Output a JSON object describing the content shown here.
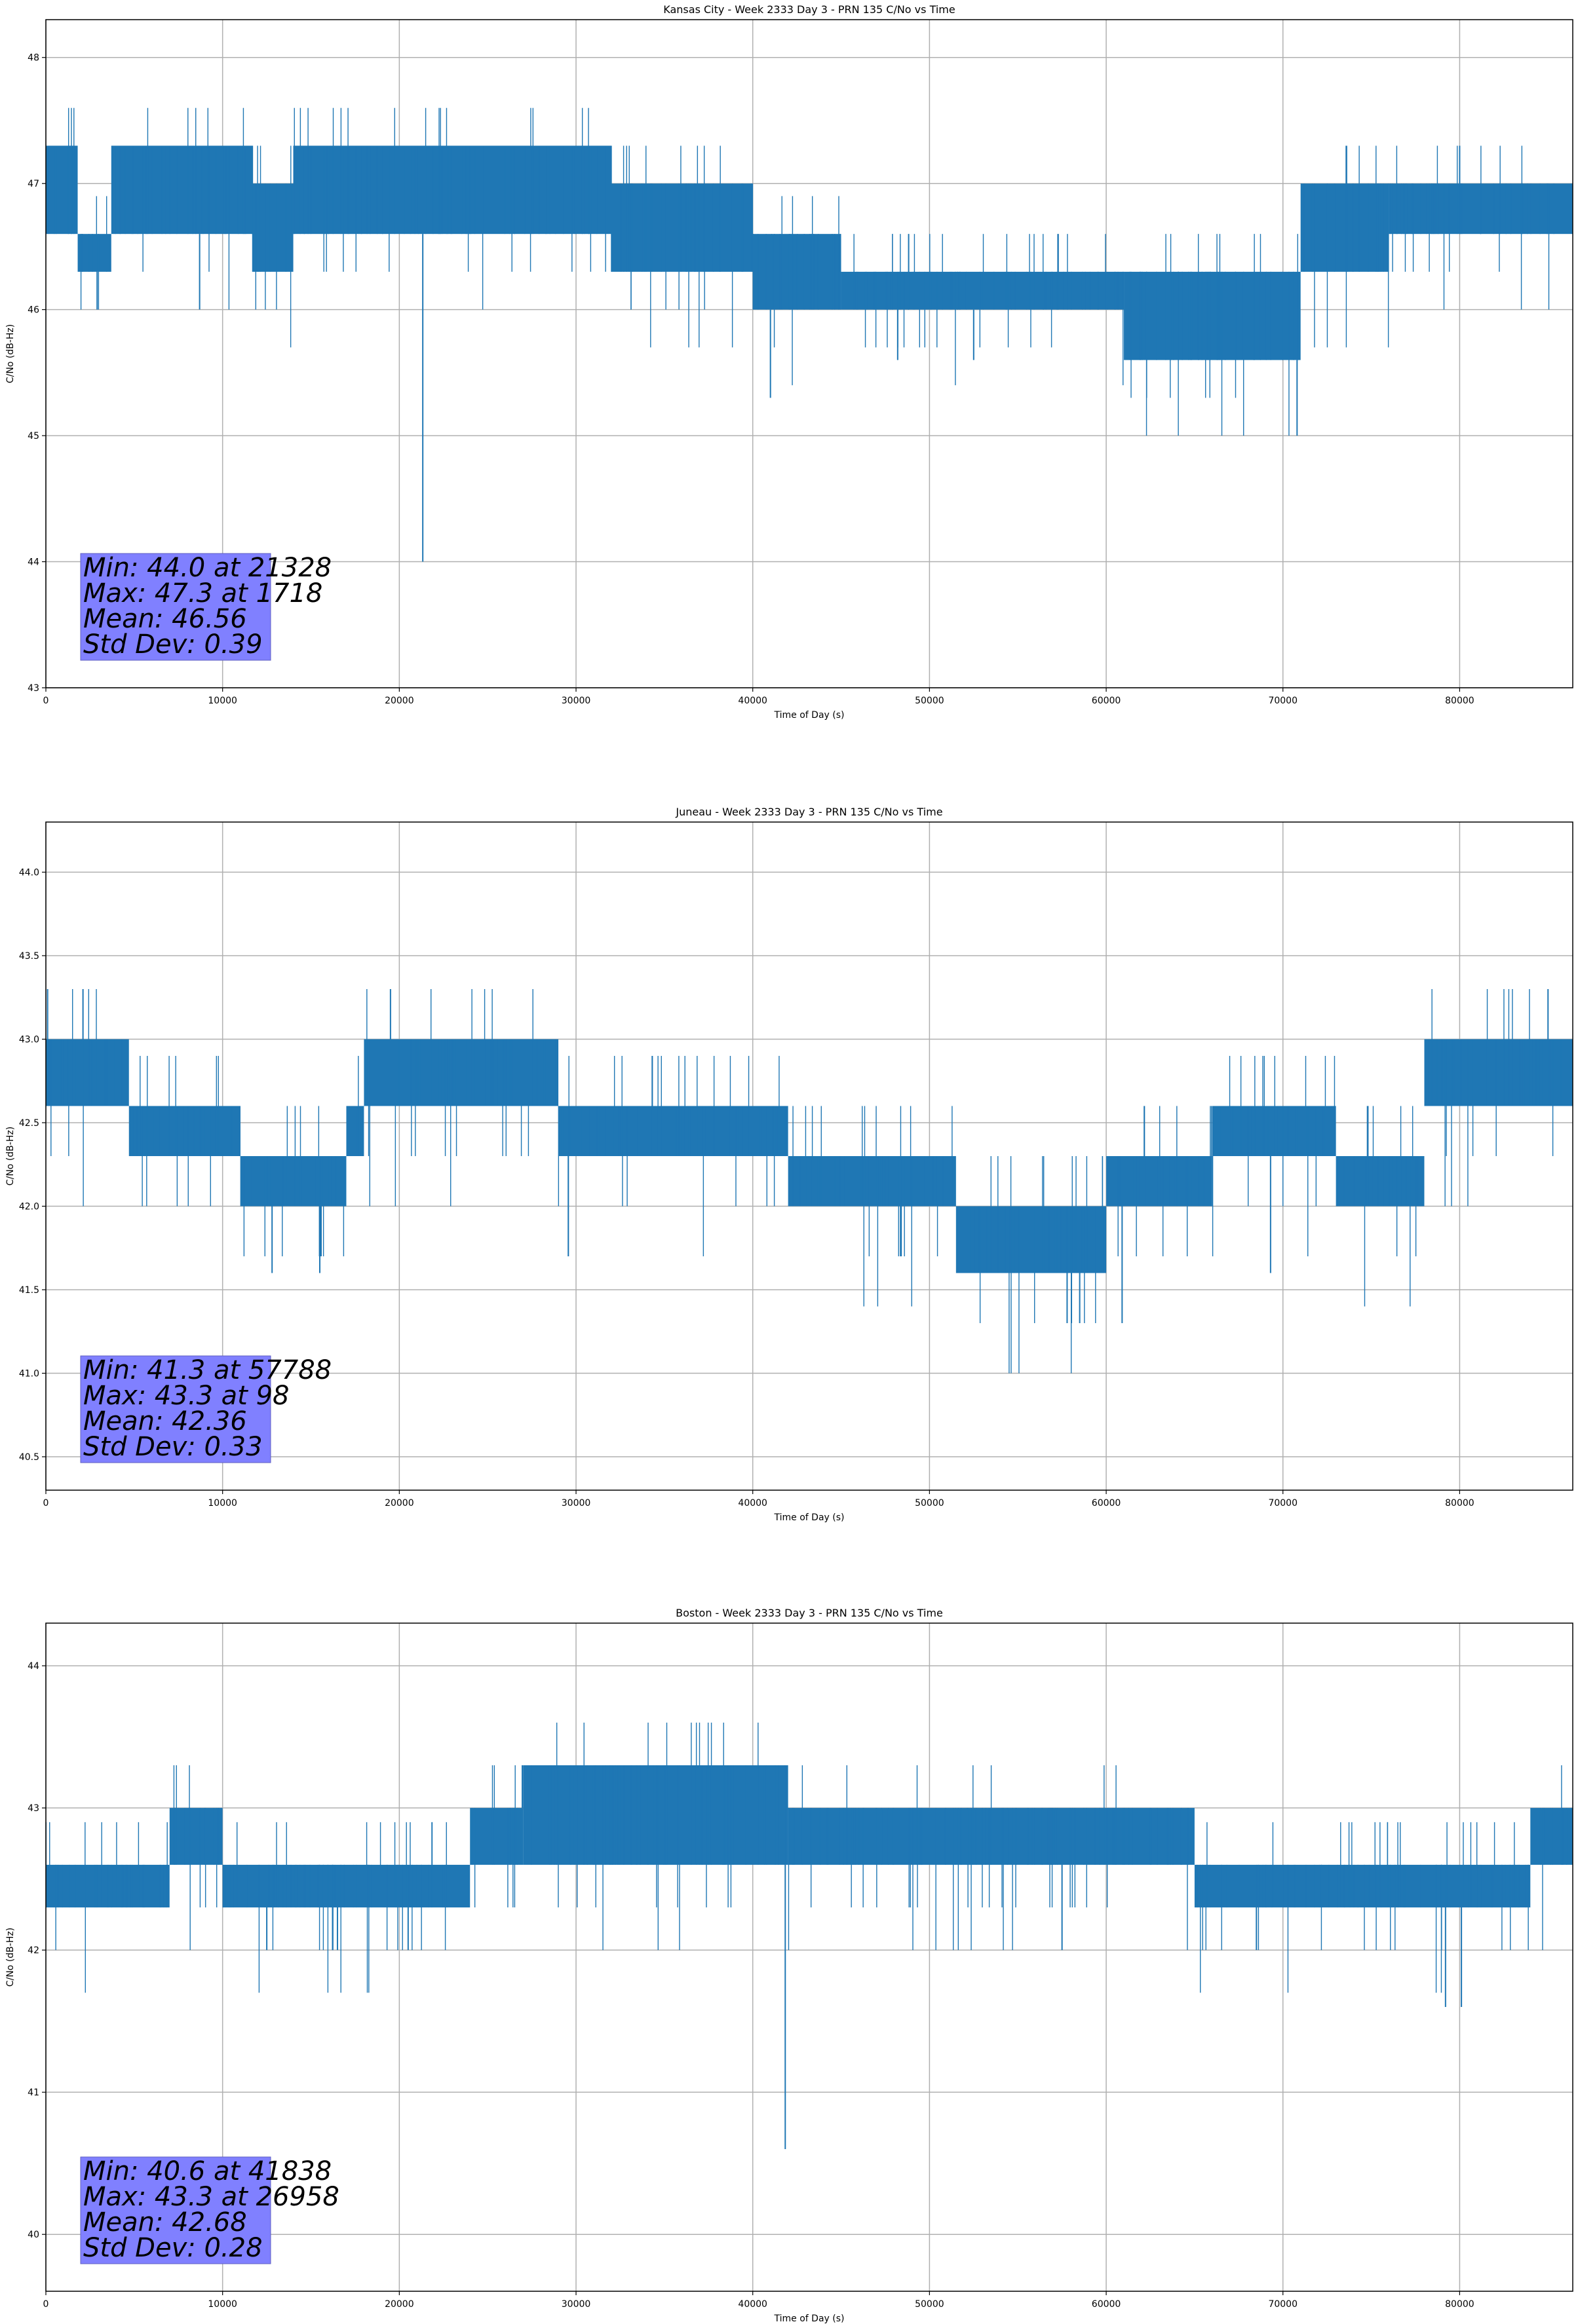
{
  "chart_data": [
    {
      "type": "line",
      "title": "Kansas City - Week 2333 Day 3 - PRN 135 C/No vs Time",
      "xlabel": "Time of Day (s)",
      "ylabel": "C/No (dB-Hz)",
      "xlim": [
        0,
        86400
      ],
      "ylim": [
        43,
        48.3
      ],
      "xticks": [
        0,
        10000,
        20000,
        30000,
        40000,
        50000,
        60000,
        70000,
        80000
      ],
      "yticks": [
        43,
        44,
        45,
        46,
        47,
        48
      ],
      "ytick_labels": [
        "43",
        "44",
        "45",
        "46",
        "47",
        "48"
      ],
      "grid": true,
      "color": "#1f77b4",
      "segments": [
        {
          "x0": 0,
          "x1": 1800,
          "lo": 46.6,
          "hi": 47.3
        },
        {
          "x0": 1800,
          "x1": 3700,
          "lo": 46.3,
          "hi": 46.6
        },
        {
          "x0": 3700,
          "x1": 11700,
          "lo": 46.6,
          "hi": 47.3
        },
        {
          "x0": 11700,
          "x1": 14000,
          "lo": 46.3,
          "hi": 47.0
        },
        {
          "x0": 14000,
          "x1": 32000,
          "lo": 46.6,
          "hi": 47.3
        },
        {
          "x0": 32000,
          "x1": 40000,
          "lo": 46.3,
          "hi": 47.0
        },
        {
          "x0": 40000,
          "x1": 45000,
          "lo": 46.0,
          "hi": 46.6
        },
        {
          "x0": 45000,
          "x1": 61000,
          "lo": 46.0,
          "hi": 46.3
        },
        {
          "x0": 61000,
          "x1": 71000,
          "lo": 45.6,
          "hi": 46.3
        },
        {
          "x0": 71000,
          "x1": 76000,
          "lo": 46.3,
          "hi": 47.0
        },
        {
          "x0": 76000,
          "x1": 86400,
          "lo": 46.6,
          "hi": 47.0
        }
      ],
      "spikes": [
        {
          "x": 2900,
          "y": 46.0
        },
        {
          "x": 8700,
          "y": 46.0
        },
        {
          "x": 21328,
          "y": 44.0
        },
        {
          "x": 41000,
          "y": 45.3
        },
        {
          "x": 48200,
          "y": 45.6
        },
        {
          "x": 52500,
          "y": 45.6
        },
        {
          "x": 70800,
          "y": 45.0
        },
        {
          "x": 80000,
          "y": 47.3
        }
      ],
      "stats": {
        "min": "Min: 44.0 at 21328",
        "max": "Max: 47.3 at 1718",
        "mean": "Mean: 46.56",
        "std": "Std Dev: 0.39"
      }
    },
    {
      "type": "line",
      "title": "Juneau - Week 2333 Day 3 - PRN 135 C/No vs Time",
      "xlabel": "Time of Day (s)",
      "ylabel": "C/No (dB-Hz)",
      "xlim": [
        0,
        86400
      ],
      "ylim": [
        40.3,
        44.3
      ],
      "xticks": [
        0,
        10000,
        20000,
        30000,
        40000,
        50000,
        60000,
        70000,
        80000
      ],
      "yticks": [
        40.5,
        41.0,
        41.5,
        42.0,
        42.5,
        43.0,
        43.5,
        44.0
      ],
      "ytick_labels": [
        "40.5",
        "41.0",
        "41.5",
        "42.0",
        "42.5",
        "43.0",
        "43.5",
        "44.0"
      ],
      "grid": true,
      "color": "#1f77b4",
      "segments": [
        {
          "x0": 0,
          "x1": 4700,
          "lo": 42.6,
          "hi": 43.0
        },
        {
          "x0": 4700,
          "x1": 11000,
          "lo": 42.3,
          "hi": 42.6
        },
        {
          "x0": 11000,
          "x1": 17000,
          "lo": 42.0,
          "hi": 42.3
        },
        {
          "x0": 17000,
          "x1": 18000,
          "lo": 42.3,
          "hi": 42.6
        },
        {
          "x0": 18000,
          "x1": 29000,
          "lo": 42.6,
          "hi": 43.0
        },
        {
          "x0": 29000,
          "x1": 42000,
          "lo": 42.3,
          "hi": 42.6
        },
        {
          "x0": 42000,
          "x1": 51500,
          "lo": 42.0,
          "hi": 42.3
        },
        {
          "x0": 51500,
          "x1": 60000,
          "lo": 41.6,
          "hi": 42.0
        },
        {
          "x0": 60000,
          "x1": 66000,
          "lo": 42.0,
          "hi": 42.3
        },
        {
          "x0": 66000,
          "x1": 73000,
          "lo": 42.3,
          "hi": 42.6
        },
        {
          "x0": 73000,
          "x1": 78000,
          "lo": 42.0,
          "hi": 42.3
        },
        {
          "x0": 78000,
          "x1": 86400,
          "lo": 42.6,
          "hi": 43.0
        }
      ],
      "spikes": [
        {
          "x": 98,
          "y": 43.3
        },
        {
          "x": 2100,
          "y": 43.3
        },
        {
          "x": 12800,
          "y": 41.6
        },
        {
          "x": 15500,
          "y": 41.6
        },
        {
          "x": 19500,
          "y": 43.3
        },
        {
          "x": 57788,
          "y": 41.3
        },
        {
          "x": 58500,
          "y": 41.3
        },
        {
          "x": 60900,
          "y": 41.3
        },
        {
          "x": 69300,
          "y": 41.6
        },
        {
          "x": 85000,
          "y": 43.3
        }
      ],
      "stats": {
        "min": "Min: 41.3 at 57788",
        "max": "Max: 43.3 at 98",
        "mean": "Mean: 42.36",
        "std": "Std Dev: 0.33"
      }
    },
    {
      "type": "line",
      "title": "Boston - Week 2333 Day 3 - PRN 135 C/No vs Time",
      "xlabel": "Time of Day (s)",
      "ylabel": "C/No (dB-Hz)",
      "xlim": [
        0,
        86400
      ],
      "ylim": [
        39.6,
        44.3
      ],
      "xticks": [
        0,
        10000,
        20000,
        30000,
        40000,
        50000,
        60000,
        70000,
        80000
      ],
      "yticks": [
        40,
        41,
        42,
        43,
        44
      ],
      "ytick_labels": [
        "40",
        "41",
        "42",
        "43",
        "44"
      ],
      "grid": true,
      "color": "#1f77b4",
      "segments": [
        {
          "x0": 0,
          "x1": 7000,
          "lo": 42.3,
          "hi": 42.6
        },
        {
          "x0": 7000,
          "x1": 10000,
          "lo": 42.6,
          "hi": 43.0
        },
        {
          "x0": 10000,
          "x1": 24000,
          "lo": 42.3,
          "hi": 42.6
        },
        {
          "x0": 24000,
          "x1": 27000,
          "lo": 42.6,
          "hi": 43.0
        },
        {
          "x0": 27000,
          "x1": 42000,
          "lo": 42.6,
          "hi": 43.3
        },
        {
          "x0": 42000,
          "x1": 65000,
          "lo": 42.6,
          "hi": 43.0
        },
        {
          "x0": 65000,
          "x1": 84000,
          "lo": 42.3,
          "hi": 42.6
        },
        {
          "x0": 84000,
          "x1": 86400,
          "lo": 42.6,
          "hi": 43.0
        }
      ],
      "spikes": [
        {
          "x": 12500,
          "y": 42.0
        },
        {
          "x": 16500,
          "y": 42.0
        },
        {
          "x": 20500,
          "y": 42.0
        },
        {
          "x": 26958,
          "y": 43.3
        },
        {
          "x": 41838,
          "y": 40.6
        },
        {
          "x": 57500,
          "y": 42.0
        },
        {
          "x": 68500,
          "y": 42.0
        },
        {
          "x": 79200,
          "y": 41.6
        },
        {
          "x": 80100,
          "y": 41.6
        }
      ],
      "stats": {
        "min": "Min: 40.6 at 41838",
        "max": "Max: 43.3 at 26958",
        "mean": "Mean: 42.68",
        "std": "Std Dev: 0.28"
      }
    }
  ]
}
